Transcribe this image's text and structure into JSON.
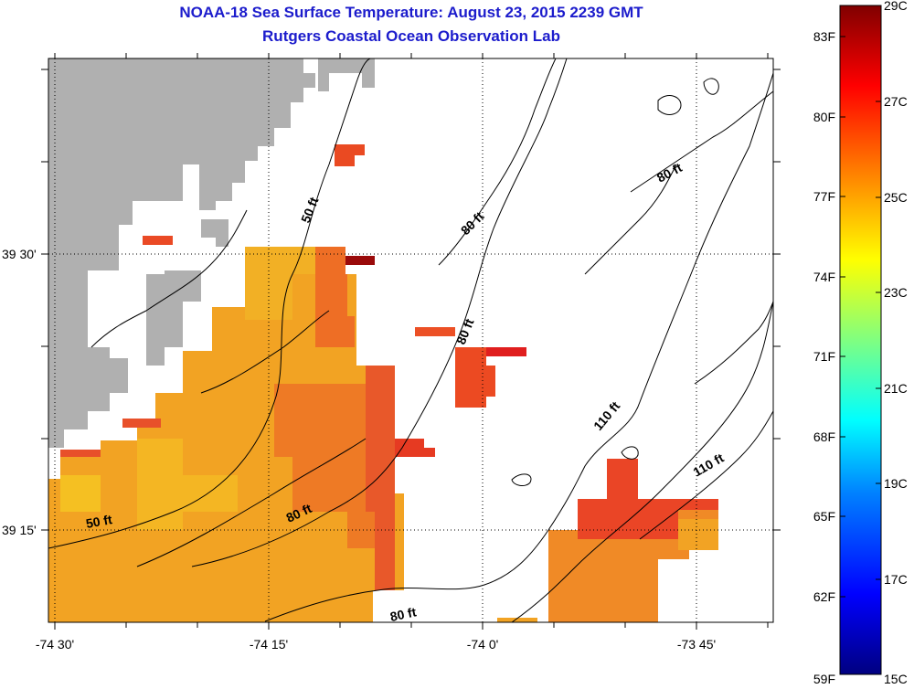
{
  "header": {
    "title": "NOAA-18 Sea Surface Temperature:  August 23, 2015 2239 GMT",
    "subtitle": "Rutgers Coastal Ocean Observation Lab"
  },
  "map": {
    "lon_labels": [
      "-74 30'",
      "-74 15'",
      "-74 0'",
      "-73 45'"
    ],
    "lat_labels": [
      "39 30'",
      "39 15'"
    ],
    "contour_labels": [
      "50 ft",
      "50 ft",
      "80 ft",
      "80 ft",
      "80 ft",
      "80 ft",
      "80 ft",
      "110 ft",
      "110 ft"
    ],
    "land_color": "#b0b0b0",
    "no_data_color": "#ffffff"
  },
  "colorbar": {
    "fahrenheit_labels": [
      "83F",
      "80F",
      "77F",
      "74F",
      "71F",
      "68F",
      "65F",
      "62F",
      "59F"
    ],
    "celsius_labels": [
      "29C",
      "27C",
      "25C",
      "23C",
      "21C",
      "19C",
      "17C",
      "15C"
    ],
    "min_c": 15,
    "max_c": 29,
    "stops": [
      "#000080",
      "#0000ff",
      "#0080ff",
      "#00ffff",
      "#80ff80",
      "#ffff00",
      "#ff8000",
      "#ff0000",
      "#800000"
    ]
  }
}
